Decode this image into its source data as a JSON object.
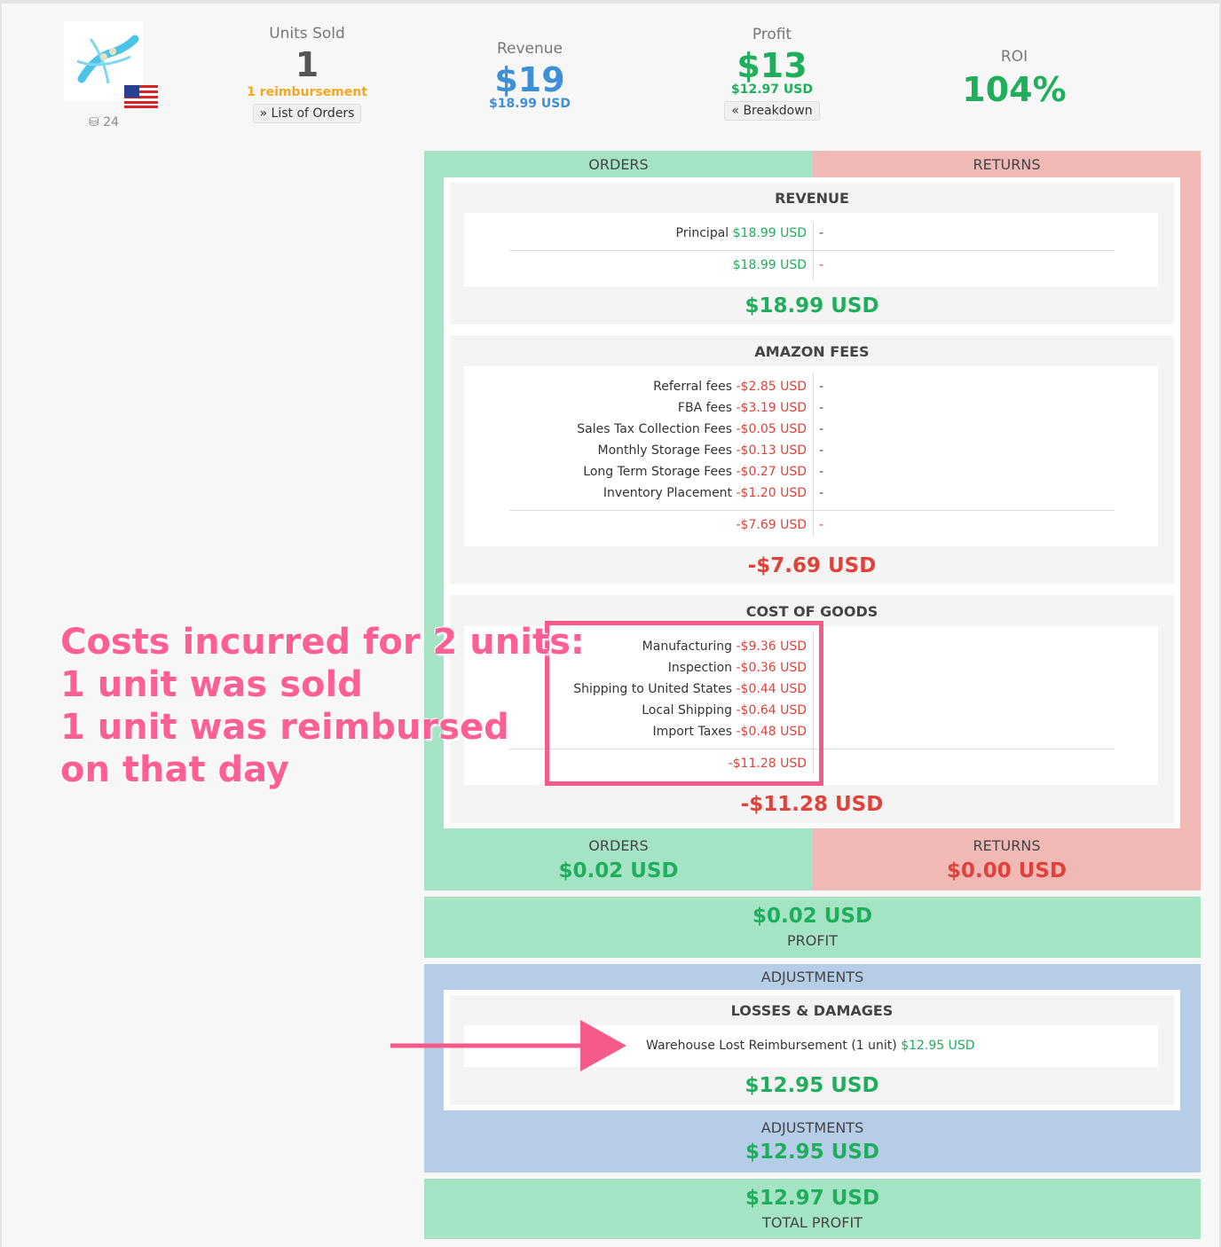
{
  "header": {
    "asin_count": "24",
    "units_sold": {
      "label": "Units Sold",
      "value": "1",
      "note": "1 reimbursement",
      "button": "List of Orders"
    },
    "revenue": {
      "label": "Revenue",
      "value": "$19",
      "sub": "$18.99 USD"
    },
    "profit": {
      "label": "Profit",
      "value": "$13",
      "sub": "$12.97 USD",
      "button": "Breakdown"
    },
    "roi": {
      "label": "ROI",
      "value": "104%"
    }
  },
  "breakdown": {
    "orders_header": "ORDERS",
    "returns_header": "RETURNS",
    "revenue": {
      "title": "REVENUE",
      "rows": [
        {
          "label": "Principal",
          "value": "$18.99 USD",
          "returns": "-"
        }
      ],
      "subtotal": "$18.99 USD",
      "subtotal_returns": "-",
      "total": "$18.99 USD"
    },
    "amazon_fees": {
      "title": "AMAZON FEES",
      "rows": [
        {
          "label": "Referral fees",
          "value": "-$2.85 USD",
          "returns": "-"
        },
        {
          "label": "FBA fees",
          "value": "-$3.19 USD",
          "returns": "-"
        },
        {
          "label": "Sales Tax Collection Fees",
          "value": "-$0.05 USD",
          "returns": "-"
        },
        {
          "label": "Monthly Storage Fees",
          "value": "-$0.13 USD",
          "returns": "-"
        },
        {
          "label": "Long Term Storage Fees",
          "value": "-$0.27 USD",
          "returns": "-"
        },
        {
          "label": "Inventory Placement",
          "value": "-$1.20 USD",
          "returns": "-"
        }
      ],
      "subtotal": "-$7.69 USD",
      "subtotal_returns": "-",
      "total": "-$7.69 USD"
    },
    "cost_of_goods": {
      "title": "COST OF GOODS",
      "rows": [
        {
          "label": "Manufacturing",
          "value": "-$9.36 USD"
        },
        {
          "label": "Inspection",
          "value": "-$0.36 USD"
        },
        {
          "label": "Shipping to United States",
          "value": "-$0.44 USD"
        },
        {
          "label": "Local Shipping",
          "value": "-$0.64 USD"
        },
        {
          "label": "Import Taxes",
          "value": "-$0.48 USD"
        }
      ],
      "subtotal": "-$11.28 USD",
      "total": "-$11.28 USD"
    },
    "orders_total": {
      "label": "ORDERS",
      "value": "$0.02 USD"
    },
    "returns_total": {
      "label": "RETURNS",
      "value": "$0.00 USD"
    }
  },
  "profit": {
    "value": "$0.02 USD",
    "label": "PROFIT"
  },
  "adjustments": {
    "header": "ADJUSTMENTS",
    "losses_title": "LOSSES & DAMAGES",
    "row_label": "Warehouse Lost Reimbursement (1 unit)",
    "row_value": "$12.95 USD",
    "losses_total": "$12.95 USD",
    "footer_label": "ADJUSTMENTS",
    "footer_value": "$12.95 USD"
  },
  "total_profit": {
    "value": "$12.97 USD",
    "label": "TOTAL PROFIT"
  },
  "annotation": {
    "line1": "Costs incurred for 2 units:",
    "line2": "1 unit was sold",
    "line3": "1 unit was reimbursed",
    "line4": "on that day"
  },
  "colors": {
    "positive": "#1fae5b",
    "negative": "#e0423a",
    "revenue_blue": "#3d8fd8",
    "reimbursement_orange": "#f5a623",
    "annotation_pink": "#ff5f94"
  }
}
